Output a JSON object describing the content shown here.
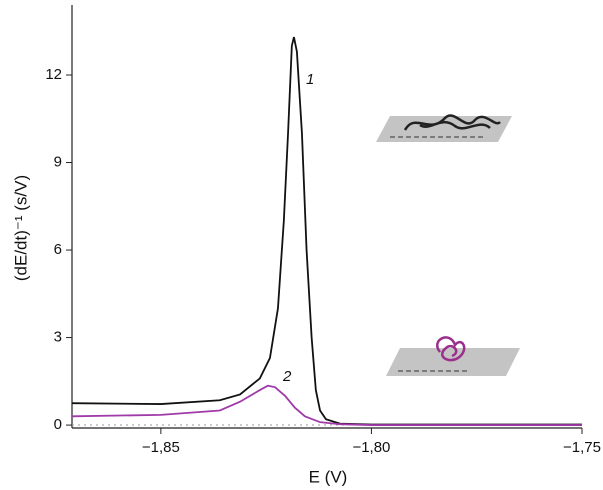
{
  "chart_data": {
    "type": "line",
    "x_label": "E (V)",
    "y_label": "(dE/dt)⁻¹ (s/V)",
    "xlim": [
      -1.8711,
      -1.75
    ],
    "ylim": [
      -0.1,
      14.4
    ],
    "xticks": [
      {
        "value": -1.85,
        "label": "−1,85"
      },
      {
        "value": -1.8,
        "label": "−1,80"
      },
      {
        "value": -1.75,
        "label": "−1,75"
      }
    ],
    "yticks": [
      0,
      3,
      6,
      9,
      12
    ],
    "series": [
      {
        "name": "1",
        "color": "#111111",
        "x": [
          -1.8711,
          -1.85,
          -1.836,
          -1.8312,
          -1.8265,
          -1.8241,
          -1.8222,
          -1.8208,
          -1.8198,
          -1.8189,
          -1.8184,
          -1.8177,
          -1.8165,
          -1.8154,
          -1.8142,
          -1.8132,
          -1.8122,
          -1.8108,
          -1.8075,
          -1.8,
          -1.75
        ],
        "values": [
          0.75,
          0.72,
          0.85,
          1.05,
          1.6,
          2.3,
          4,
          7,
          10,
          13,
          13.3,
          12.8,
          10,
          6,
          3,
          1.2,
          0.5,
          0.2,
          0.05,
          0.02,
          0.02
        ]
      },
      {
        "name": "2",
        "color": "#a03aa8",
        "x": [
          -1.8711,
          -1.85,
          -1.836,
          -1.8312,
          -1.8265,
          -1.8246,
          -1.8229,
          -1.8205,
          -1.8182,
          -1.8158,
          -1.8122,
          -1.8075,
          -1.8,
          -1.75
        ],
        "values": [
          0.3,
          0.35,
          0.5,
          0.8,
          1.2,
          1.35,
          1.3,
          1.0,
          0.6,
          0.3,
          0.1,
          0.03,
          0,
          0
        ]
      }
    ]
  }
}
